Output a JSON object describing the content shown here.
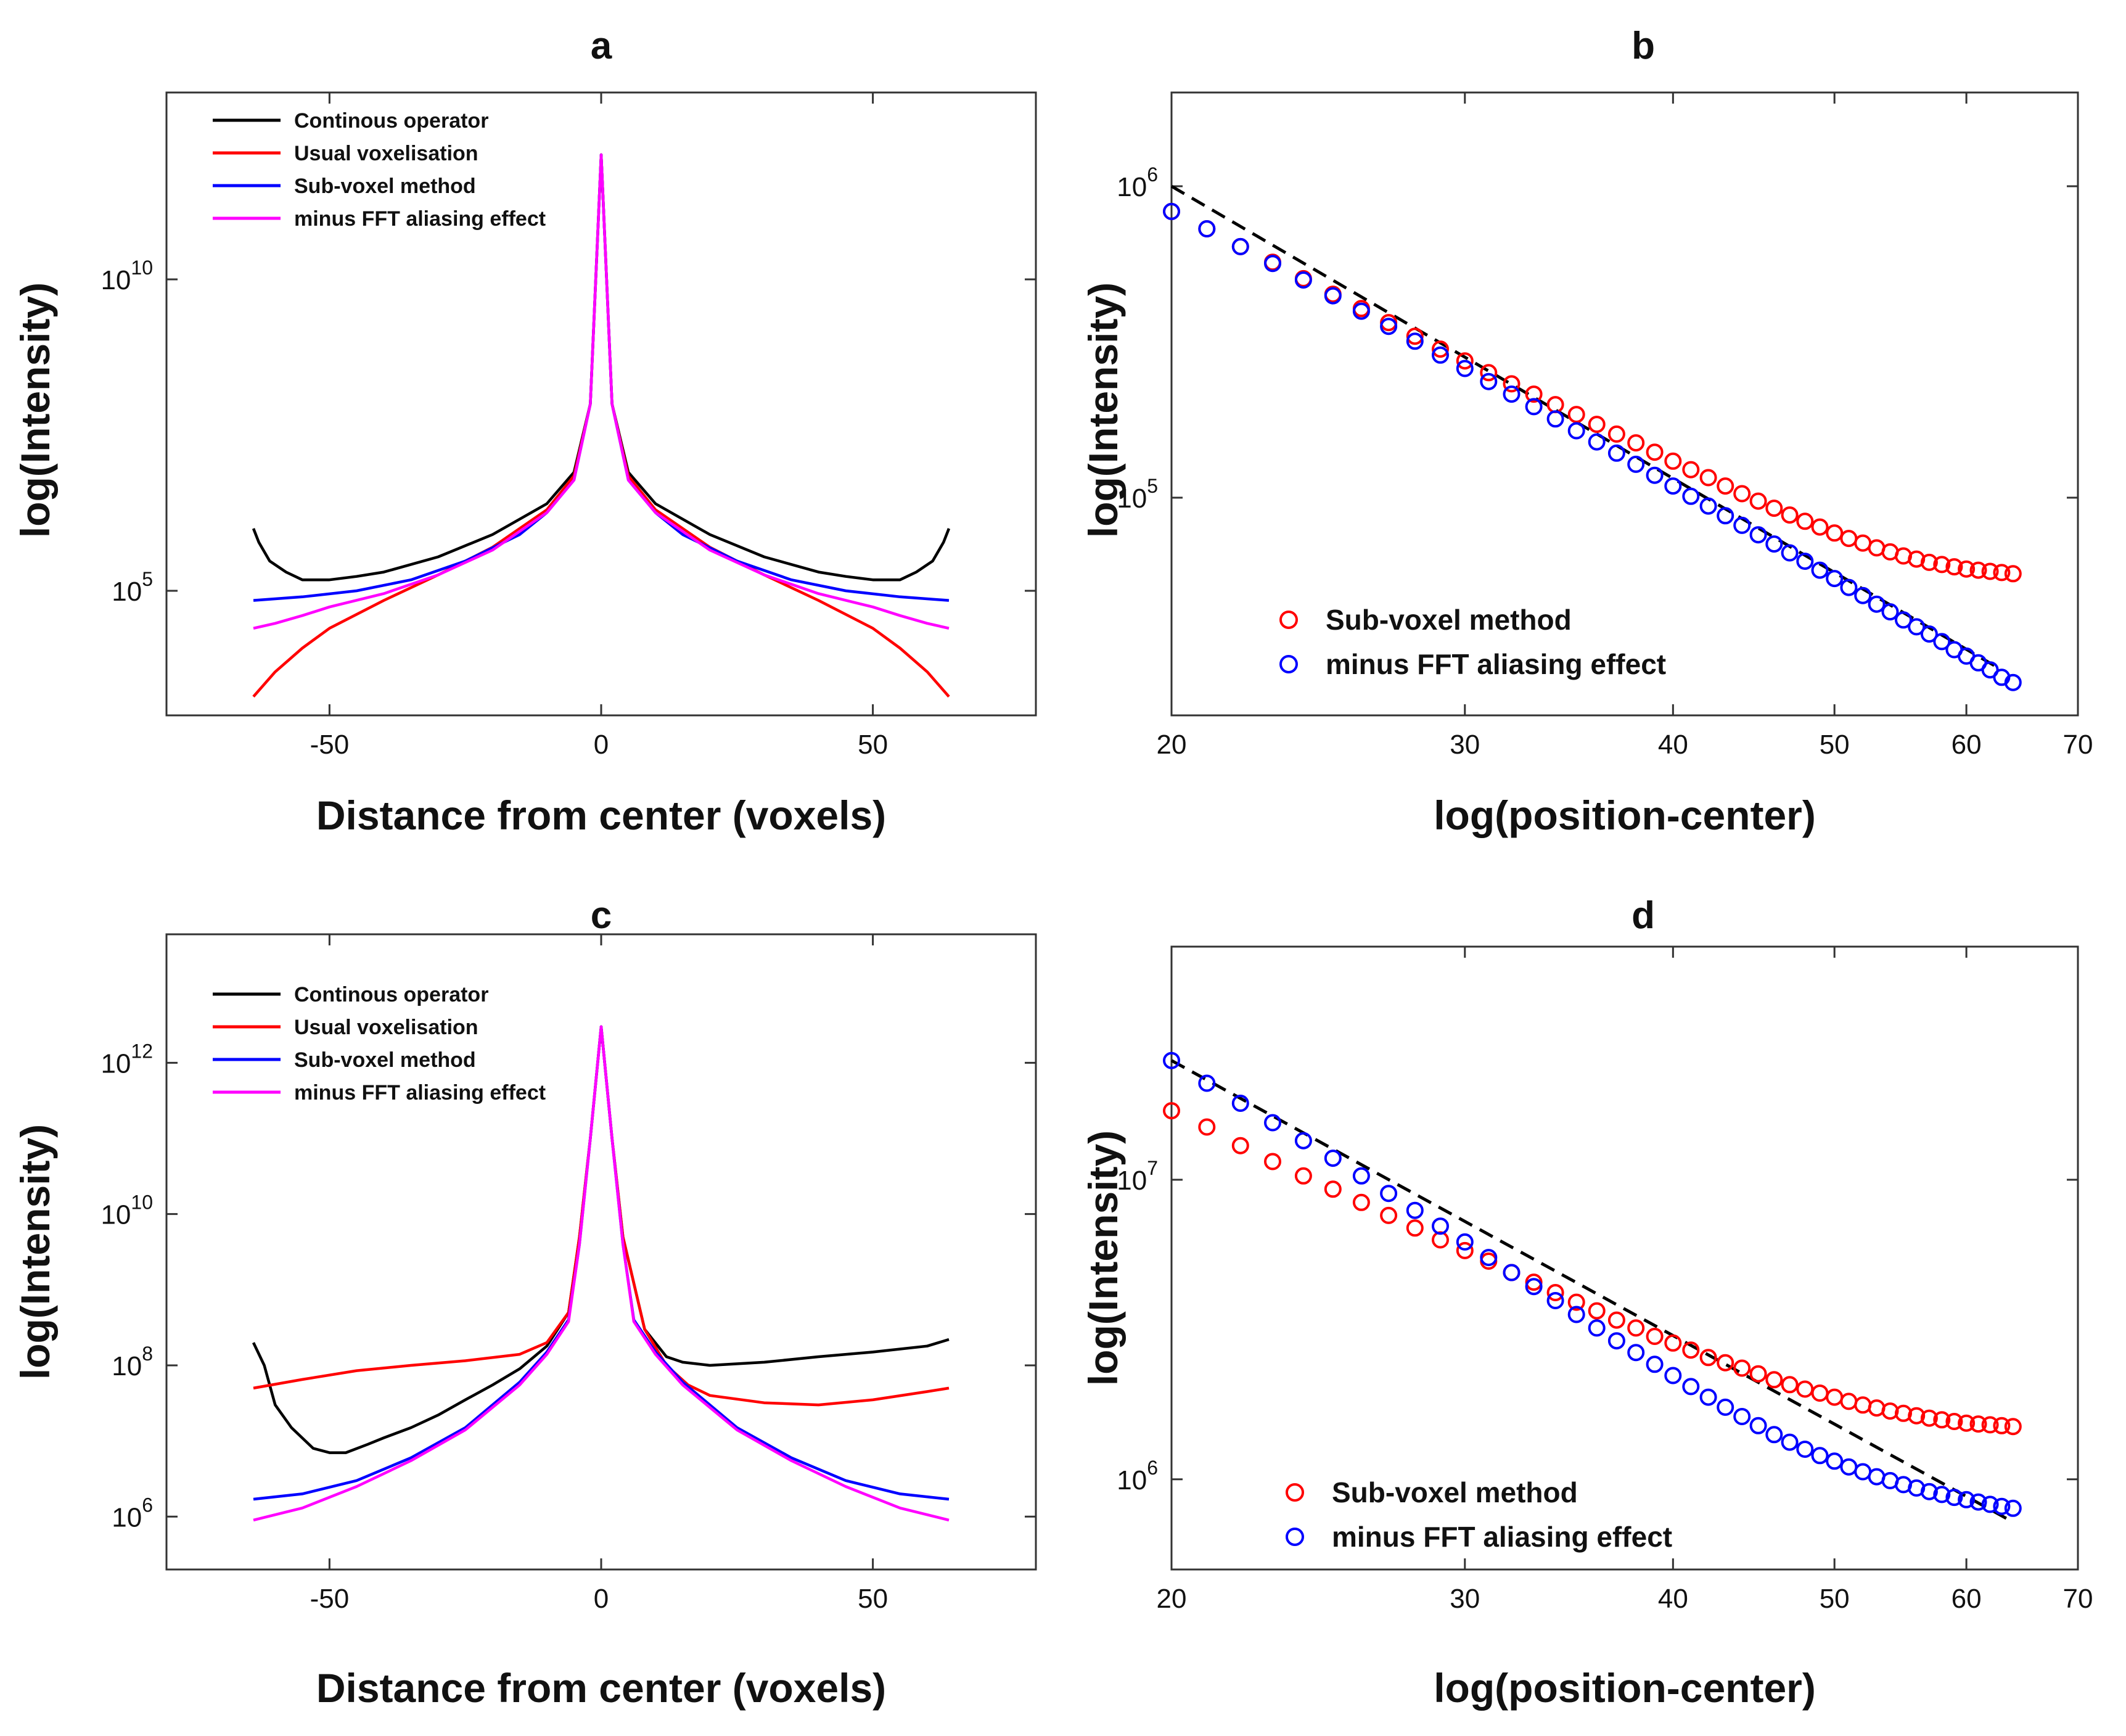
{
  "chart_data": [
    {
      "id": "a",
      "type": "line",
      "title": "a",
      "xlabel": "Distance from center (voxels)",
      "ylabel": "log(Intensity)",
      "xscale": "linear",
      "yscale": "log",
      "xlim": [
        -80,
        80
      ],
      "ylim": [
        1000,
        10000000000000
      ],
      "xticks": [
        -50,
        0,
        50
      ],
      "yticks": [
        {
          "value": 100000,
          "base": "10",
          "exp": "5"
        },
        {
          "value": 10000000000,
          "base": "10",
          "exp": "10"
        }
      ],
      "legend_position": "top-left",
      "series": [
        {
          "name": "Continous operator",
          "color": "#000000",
          "x": [
            -64,
            -63,
            -61,
            -58,
            -55,
            -50,
            -45,
            -40,
            -30,
            -20,
            -10,
            -5,
            -2,
            0,
            2,
            5,
            10,
            20,
            30,
            40,
            45,
            50,
            55,
            58,
            61,
            63,
            64
          ],
          "y": [
            1000000,
            600000,
            300000,
            200000,
            150000,
            150000,
            170000,
            200000,
            350000,
            800000,
            2500000,
            8000000,
            100000000,
            1000000000000,
            100000000,
            8000000,
            2500000,
            800000,
            350000,
            200000,
            170000,
            150000,
            150000,
            200000,
            300000,
            600000,
            1000000
          ]
        },
        {
          "name": "Usual voxelisation",
          "color": "#ff0000",
          "x": [
            -64,
            -60,
            -55,
            -50,
            -40,
            -30,
            -20,
            -10,
            -5,
            -2,
            0,
            2,
            5,
            10,
            20,
            30,
            40,
            50,
            55,
            60,
            64
          ],
          "y": [
            2000,
            5000,
            12000,
            25000,
            70000,
            180000,
            500000,
            2000000,
            7000000,
            100000000,
            1000000000000,
            100000000,
            7000000,
            2000000,
            500000,
            180000,
            70000,
            25000,
            12000,
            5000,
            2000
          ]
        },
        {
          "name": "Sub-voxel method",
          "color": "#0000ff",
          "x": [
            -64,
            -55,
            -45,
            -35,
            -25,
            -15,
            -10,
            -5,
            -2,
            0,
            2,
            5,
            10,
            15,
            25,
            35,
            45,
            55,
            64
          ],
          "y": [
            70000,
            80000,
            100000,
            150000,
            300000,
            800000,
            1800000,
            6000000,
            100000000,
            1000000000000,
            100000000,
            6000000,
            1800000,
            800000,
            300000,
            150000,
            100000,
            80000,
            70000
          ]
        },
        {
          "name": "minus FFT aliasing effect",
          "color": "#ff00ff",
          "x": [
            -64,
            -60,
            -55,
            -50,
            -40,
            -30,
            -20,
            -10,
            -5,
            -2,
            0,
            2,
            5,
            10,
            20,
            30,
            40,
            50,
            55,
            60,
            64
          ],
          "y": [
            25000,
            30000,
            40000,
            55000,
            90000,
            180000,
            450000,
            1800000,
            6000000,
            100000000,
            1000000000000,
            100000000,
            6000000,
            1800000,
            450000,
            180000,
            90000,
            55000,
            40000,
            30000,
            25000
          ]
        }
      ]
    },
    {
      "id": "b",
      "type": "scatter",
      "title": "b",
      "xlabel": "log(position-center)",
      "ylabel": "log(Intensity)",
      "xscale": "log",
      "yscale": "log",
      "xlim": [
        20,
        70
      ],
      "ylim": [
        20000,
        2000000
      ],
      "xticks": [
        20,
        30,
        40,
        50,
        60,
        70
      ],
      "yticks": [
        {
          "value": 100000,
          "base": "10",
          "exp": "5"
        },
        {
          "value": 1000000,
          "base": "10",
          "exp": "6"
        }
      ],
      "legend_position": "bottom-left",
      "fit_line": {
        "color": "#000000",
        "style": "dashed",
        "x": [
          20,
          63
        ],
        "y": [
          1000000,
          28000
        ]
      },
      "series": [
        {
          "name": "Sub-voxel method",
          "color": "#ff0000",
          "x": [
            20,
            21,
            22,
            23,
            24,
            25,
            26,
            27,
            28,
            29,
            30,
            31,
            32,
            33,
            34,
            35,
            36,
            37,
            38,
            39,
            40,
            41,
            42,
            43,
            44,
            45,
            46,
            47,
            48,
            49,
            50,
            51,
            52,
            53,
            54,
            55,
            56,
            57,
            58,
            59,
            60,
            61,
            62,
            63,
            64
          ],
          "y": [
            830000,
            730000,
            640000,
            570000,
            505000,
            450000,
            405000,
            365000,
            330000,
            300000,
            275000,
            252000,
            232000,
            215000,
            199000,
            185000,
            172000,
            160000,
            150000,
            140000,
            131000,
            123000,
            116000,
            109000,
            103000,
            97500,
            92500,
            88000,
            84000,
            80500,
            77000,
            74000,
            71500,
            69000,
            67000,
            65000,
            63500,
            62000,
            61000,
            60000,
            59000,
            58500,
            58000,
            57500,
            57000
          ]
        },
        {
          "name": "minus FFT aliasing effect",
          "color": "#0000ff",
          "x": [
            20,
            21,
            22,
            23,
            24,
            25,
            26,
            27,
            28,
            29,
            30,
            31,
            32,
            33,
            34,
            35,
            36,
            37,
            38,
            39,
            40,
            41,
            42,
            43,
            44,
            45,
            46,
            47,
            48,
            49,
            50,
            51,
            52,
            53,
            54,
            55,
            56,
            57,
            58,
            59,
            60,
            61,
            62,
            63,
            64
          ],
          "y": [
            830000,
            730000,
            640000,
            565000,
            500000,
            445000,
            397000,
            355000,
            318000,
            287000,
            260000,
            236000,
            215000,
            196000,
            179000,
            164000,
            151000,
            139000,
            128000,
            118000,
            109000,
            101000,
            94000,
            87500,
            81500,
            76000,
            71000,
            66500,
            62500,
            58500,
            55000,
            51500,
            48500,
            45500,
            43000,
            40500,
            38500,
            36500,
            34500,
            32500,
            31000,
            29500,
            28000,
            26500,
            25500
          ]
        }
      ]
    },
    {
      "id": "c",
      "type": "line",
      "title": "c",
      "xlabel": "Distance from center (voxels)",
      "ylabel": "log(Intensity)",
      "xscale": "linear",
      "yscale": "log",
      "xlim": [
        -80,
        80
      ],
      "ylim": [
        200000,
        50000000000000
      ],
      "xticks": [
        -50,
        0,
        50
      ],
      "yticks": [
        {
          "value": 1000000,
          "base": "10",
          "exp": "6"
        },
        {
          "value": 100000000,
          "base": "10",
          "exp": "8"
        },
        {
          "value": 10000000000,
          "base": "10",
          "exp": "10"
        },
        {
          "value": 1000000000000,
          "base": "10",
          "exp": "12"
        }
      ],
      "legend_position": "top-left",
      "series": [
        {
          "name": "Continous operator",
          "color": "#000000",
          "x": [
            -64,
            -62,
            -60,
            -57,
            -53,
            -50,
            -47,
            -43,
            -40,
            -35,
            -30,
            -25,
            -20,
            -15,
            -10,
            -6,
            -4,
            -2,
            0,
            2,
            4,
            8,
            12,
            15,
            20,
            30,
            40,
            50,
            60,
            64
          ],
          "y": [
            200000000,
            100000000,
            30000000,
            15000000,
            8000000,
            7000000,
            7000000,
            9000000,
            11000000,
            15000000,
            22000000,
            35000000,
            55000000,
            90000000,
            180000000,
            500000000,
            5000000000,
            100000000000,
            3000000000000,
            100000000000,
            5000000000,
            300000000,
            130000000,
            110000000,
            100000000,
            110000000,
            130000000,
            150000000,
            180000000,
            220000000
          ]
        },
        {
          "name": "Usual voxelisation",
          "color": "#ff0000",
          "x": [
            -64,
            -55,
            -45,
            -35,
            -25,
            -15,
            -10,
            -6,
            -4,
            -2,
            0,
            2,
            4,
            8,
            12,
            16,
            20,
            30,
            40,
            50,
            60,
            64
          ],
          "y": [
            50000000,
            65000000,
            85000000,
            100000000,
            115000000,
            140000000,
            200000000,
            500000000,
            5000000000,
            100000000000,
            3000000000000,
            100000000000,
            5000000000,
            300000000,
            100000000,
            55000000,
            40000000,
            32000000,
            30000000,
            35000000,
            45000000,
            50000000
          ]
        },
        {
          "name": "Sub-voxel method",
          "color": "#0000ff",
          "x": [
            -64,
            -55,
            -45,
            -35,
            -25,
            -15,
            -10,
            -6,
            -4,
            -2,
            0,
            2,
            4,
            6,
            10,
            15,
            25,
            35,
            45,
            55,
            64
          ],
          "y": [
            1700000,
            2000000,
            3000000,
            6000000,
            15000000,
            60000000,
            150000000,
            400000000,
            4000000000,
            100000000000,
            3000000000000,
            100000000000,
            4000000000,
            400000000,
            150000000,
            60000000,
            15000000,
            6000000,
            3000000,
            2000000,
            1700000
          ]
        },
        {
          "name": "minus FFT aliasing effect",
          "color": "#ff00ff",
          "x": [
            -64,
            -55,
            -45,
            -35,
            -25,
            -15,
            -10,
            -6,
            -4,
            -2,
            0,
            2,
            4,
            6,
            10,
            15,
            25,
            35,
            45,
            55,
            64
          ],
          "y": [
            900000,
            1300000,
            2500000,
            5500000,
            14000000,
            55000000,
            140000000,
            380000000,
            4000000000,
            100000000000,
            3000000000000,
            100000000000,
            4000000000,
            380000000,
            140000000,
            55000000,
            14000000,
            5500000,
            2500000,
            1300000,
            900000
          ]
        }
      ]
    },
    {
      "id": "d",
      "type": "scatter",
      "title": "d",
      "xlabel": "log(position-center)",
      "ylabel": "log(Intensity)",
      "xscale": "log",
      "yscale": "log",
      "xlim": [
        20,
        70
      ],
      "ylim": [
        500000,
        60000000
      ],
      "xticks": [
        20,
        30,
        40,
        50,
        60,
        70
      ],
      "yticks": [
        {
          "value": 1000000,
          "base": "10",
          "exp": "6"
        },
        {
          "value": 10000000,
          "base": "10",
          "exp": "7"
        }
      ],
      "legend_position": "bottom-left",
      "fit_line": {
        "color": "#000000",
        "style": "dashed",
        "x": [
          20,
          64
        ],
        "y": [
          25000000,
          720000
        ]
      },
      "series": [
        {
          "name": "Sub-voxel method",
          "color": "#ff0000",
          "x": [
            20,
            21,
            22,
            23,
            24,
            25,
            26,
            27,
            28,
            29,
            30,
            31,
            32,
            33,
            34,
            35,
            36,
            37,
            38,
            39,
            40,
            41,
            42,
            43,
            44,
            45,
            46,
            47,
            48,
            49,
            50,
            51,
            52,
            53,
            54,
            55,
            56,
            57,
            58,
            59,
            60,
            61,
            62,
            63,
            64
          ],
          "y": [
            17000000,
            15000000,
            13000000,
            11500000,
            10300000,
            9300000,
            8400000,
            7600000,
            6900000,
            6300000,
            5800000,
            5350000,
            4900000,
            4550000,
            4200000,
            3900000,
            3650000,
            3400000,
            3200000,
            3000000,
            2850000,
            2700000,
            2550000,
            2450000,
            2350000,
            2250000,
            2150000,
            2070000,
            2000000,
            1940000,
            1880000,
            1820000,
            1770000,
            1730000,
            1690000,
            1660000,
            1630000,
            1600000,
            1580000,
            1560000,
            1540000,
            1530000,
            1520000,
            1510000,
            1500000
          ]
        },
        {
          "name": "minus FFT aliasing effect",
          "color": "#0000ff",
          "x": [
            20,
            21,
            22,
            23,
            24,
            25,
            26,
            27,
            28,
            29,
            30,
            31,
            32,
            33,
            34,
            35,
            36,
            37,
            38,
            39,
            40,
            41,
            42,
            43,
            44,
            45,
            46,
            47,
            48,
            49,
            50,
            51,
            52,
            53,
            54,
            55,
            56,
            57,
            58,
            59,
            60,
            61,
            62,
            63,
            64
          ],
          "y": [
            25000000,
            21000000,
            18000000,
            15500000,
            13500000,
            11800000,
            10300000,
            9000000,
            7900000,
            7000000,
            6200000,
            5500000,
            4900000,
            4400000,
            3950000,
            3550000,
            3200000,
            2900000,
            2650000,
            2420000,
            2220000,
            2040000,
            1880000,
            1740000,
            1620000,
            1510000,
            1410000,
            1330000,
            1260000,
            1200000,
            1150000,
            1100000,
            1060000,
            1020000,
            990000,
            960000,
            935000,
            910000,
            890000,
            870000,
            855000,
            840000,
            825000,
            812000,
            800000
          ]
        }
      ]
    }
  ]
}
